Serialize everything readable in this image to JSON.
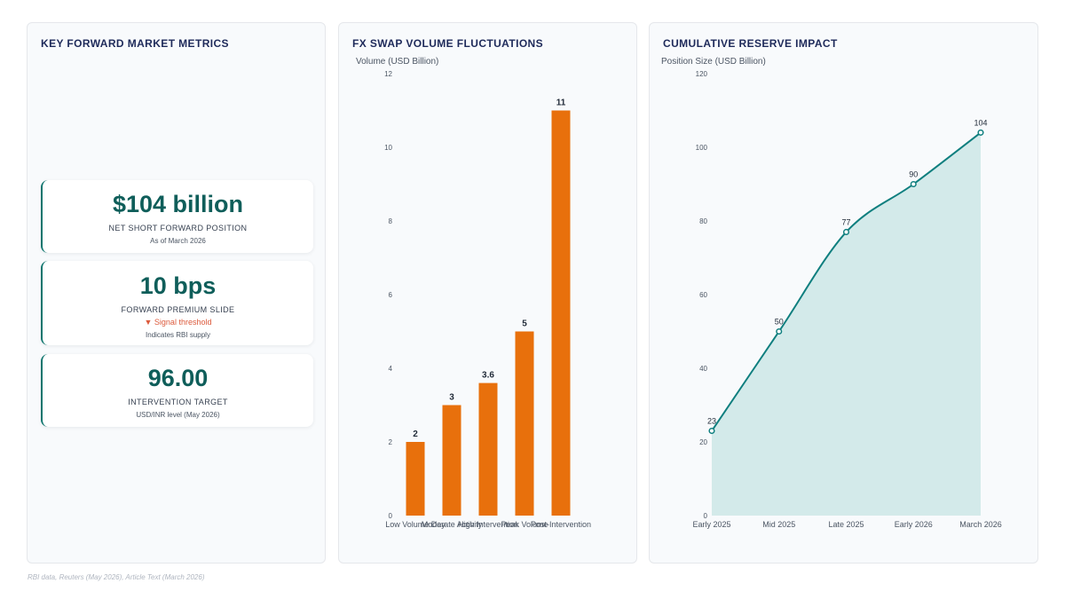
{
  "panels": {
    "metrics": {
      "title": "KEY FORWARD MARKET METRICS",
      "cards": [
        {
          "value": "$104 billion",
          "label": "NET SHORT FORWARD POSITION",
          "note": "As of March 2026"
        },
        {
          "value": "10 bps",
          "label": "FORWARD PREMIUM SLIDE",
          "signal": "▼ Signal threshold",
          "note": "Indicates RBI supply"
        },
        {
          "value": "96.00",
          "label": "INTERVENTION TARGET",
          "note": "USD/INR level (May 2026)"
        }
      ]
    },
    "bar": {
      "title": "FX SWAP VOLUME FLUCTUATIONS"
    },
    "line": {
      "title": "CUMULATIVE RESERVE IMPACT"
    }
  },
  "colors": {
    "bar": "#e8700c",
    "line": "#0f7f7f",
    "area": "#d3eaea",
    "metric_value": "#0f5e5a",
    "signal": "#dc5a3c"
  },
  "chart_data": [
    {
      "type": "bar",
      "title": "FX SWAP VOLUME FLUCTUATIONS",
      "ylabel": "Volume (USD Billion)",
      "categories": [
        "Low Volume Day",
        "Moderate Activity",
        "High Intervention",
        "Peak Volume",
        "Post-Intervention"
      ],
      "values": [
        2,
        3,
        3.6,
        5,
        11
      ],
      "data_labels": [
        "2",
        "3",
        "3.6",
        "5",
        "11"
      ],
      "ylim": [
        0,
        12
      ],
      "yticks": [
        0,
        2,
        4,
        6,
        8,
        10,
        12
      ],
      "grid": false
    },
    {
      "type": "area",
      "title": "CUMULATIVE RESERVE IMPACT",
      "ylabel": "Position Size (USD Billion)",
      "categories": [
        "Early 2025",
        "Mid 2025",
        "Late 2025",
        "Early 2026",
        "March 2026"
      ],
      "values": [
        23,
        50,
        77,
        90,
        104
      ],
      "data_labels": [
        "23",
        "50",
        "77",
        "90",
        "104"
      ],
      "ylim": [
        0,
        120
      ],
      "yticks": [
        0,
        20,
        40,
        60,
        80,
        100,
        120
      ],
      "grid": false
    }
  ],
  "footer": {
    "source": "RBI data, Reuters (May 2026), Article Text (March 2026)"
  }
}
